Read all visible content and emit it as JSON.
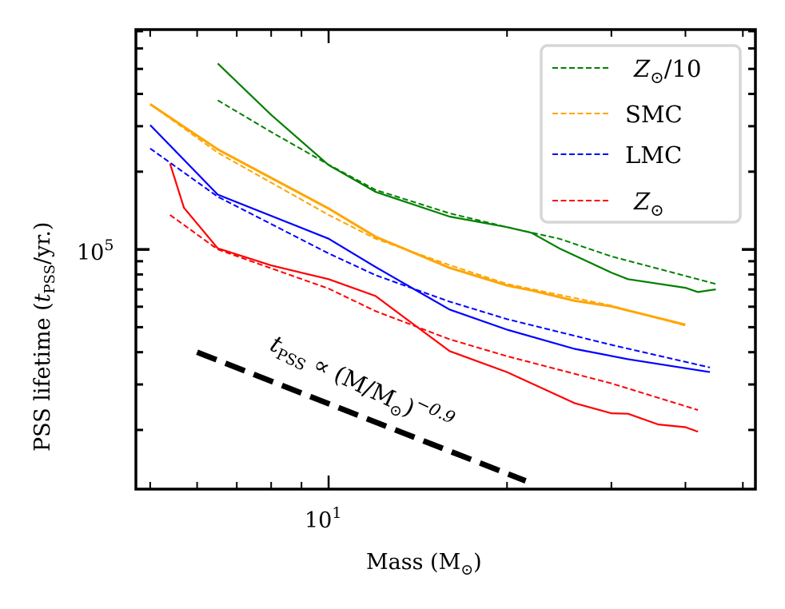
{
  "chart_data": {
    "type": "line",
    "title": "",
    "xlabel": "Mass (M⊙)",
    "xlabel_parts": {
      "main": "Mass (M",
      "sub": "⊙",
      "close": ")"
    },
    "ylabel": "PSS lifetime (t_PSS/yr.)",
    "ylabel_parts": {
      "pre": "PSS lifetime (",
      "var": "t",
      "sub": "PSS",
      "post": "/yr.)"
    },
    "xscale": "log",
    "yscale": "log",
    "xlim": [
      4.73,
      52.5
    ],
    "ylim": [
      11800,
      710000
    ],
    "x_major_ticks": [
      {
        "value": 10,
        "base": "10",
        "exp": "1"
      }
    ],
    "x_minor_ticks": [
      5,
      6,
      7,
      8,
      9,
      20,
      30,
      40,
      50
    ],
    "y_major_ticks": [
      {
        "value": 100000,
        "base": "10",
        "exp": "5"
      }
    ],
    "y_minor_ticks": [
      20000,
      30000,
      40000,
      50000,
      60000,
      70000,
      80000,
      90000,
      200000,
      300000,
      400000,
      500000,
      600000,
      700000
    ],
    "grid": false,
    "legend": {
      "placement": "top-right",
      "entries": [
        {
          "label_main": "Z",
          "label_sub": "⊙",
          "label_tail": "/10",
          "color": "#008000"
        },
        {
          "label_main": "SMC",
          "label_sub": "",
          "label_tail": "",
          "color": "#ffa500"
        },
        {
          "label_main": "LMC",
          "label_sub": "",
          "label_tail": "",
          "color": "#0000ff"
        },
        {
          "label_main": "Z",
          "label_sub": "⊙",
          "label_tail": "",
          "color": "#ff0000"
        }
      ]
    },
    "series": [
      {
        "name": "Z⊙/10 (solid)",
        "color": "#008000",
        "style": "solid",
        "x": [
          6.5,
          8.0,
          10.0,
          12.0,
          16.0,
          20.0,
          22.0,
          24.5,
          30.0,
          32.0,
          40.0,
          42.0,
          45.0
        ],
        "y": [
          525000,
          332000,
          212000,
          167000,
          134000,
          122000,
          116000,
          101000,
          81300,
          76700,
          71000,
          68400,
          70000
        ]
      },
      {
        "name": "Z⊙/10 (dashed)",
        "color": "#008000",
        "style": "dashed",
        "x": [
          6.5,
          8.0,
          10.0,
          12.0,
          16.0,
          20.0,
          24.5,
          30.0,
          40.0,
          45.0
        ],
        "y": [
          378000,
          285000,
          213000,
          170000,
          138000,
          122000,
          110000,
          94000,
          79000,
          73500
        ]
      },
      {
        "name": "SMC (solid)",
        "color": "#ffa500",
        "style": "solid",
        "x": [
          5.0,
          6.5,
          10.0,
          12.0,
          16.0,
          20.0,
          22.0,
          26.0,
          30.0,
          40.0
        ],
        "y": [
          365000,
          244000,
          144000,
          112000,
          84900,
          72500,
          69400,
          63300,
          60200,
          51100
        ]
      },
      {
        "name": "SMC (dashed)",
        "color": "#ffa500",
        "style": "dashed",
        "x": [
          5.0,
          6.5,
          10.0,
          12.0,
          16.0,
          20.0,
          30.0,
          40.0
        ],
        "y": [
          365000,
          237000,
          136000,
          110000,
          87000,
          73500,
          60600,
          50700
        ]
      },
      {
        "name": "LMC (solid)",
        "color": "#0000ff",
        "style": "solid",
        "x": [
          5.0,
          6.5,
          10.0,
          12.0,
          16.0,
          20.0,
          26.0,
          32.0,
          44.0
        ],
        "y": [
          303000,
          163000,
          110000,
          85500,
          58500,
          48900,
          41200,
          37600,
          33500
        ]
      },
      {
        "name": "LMC (dashed)",
        "color": "#0000ff",
        "style": "dashed",
        "x": [
          5.0,
          6.5,
          10.0,
          12.0,
          16.0,
          20.0,
          30.0,
          44.0
        ],
        "y": [
          246000,
          160000,
          96500,
          79500,
          62800,
          53700,
          42700,
          34900
        ]
      },
      {
        "name": "Z⊙ (solid)",
        "color": "#ff0000",
        "style": "solid",
        "x": [
          5.4,
          5.7,
          6.5,
          8.0,
          10.0,
          12.0,
          16.0,
          20.0,
          26.0,
          30.0,
          32.0,
          36.0,
          40.0,
          42.0
        ],
        "y": [
          215000,
          145000,
          101000,
          86700,
          76700,
          66000,
          40400,
          33500,
          25400,
          23200,
          23100,
          21000,
          20500,
          19700
        ]
      },
      {
        "name": "Z⊙ (dashed)",
        "color": "#ff0000",
        "style": "dashed",
        "x": [
          5.4,
          6.5,
          10.0,
          12.0,
          16.0,
          20.0,
          30.0,
          42.0
        ],
        "y": [
          136000,
          100000,
          70500,
          57700,
          44900,
          38600,
          30300,
          23900
        ]
      }
    ],
    "reference_line": {
      "color": "#000000",
      "style": "dashed",
      "x": [
        6.0,
        21.5
      ],
      "y": [
        40000,
        12700
      ],
      "slope": -0.9
    },
    "annotation": {
      "var": "t",
      "sub": "PSS",
      "prop": " ∝ (M/M",
      "sub2": "⊙",
      "close": ")",
      "exp": "−0.9",
      "text": "t_PSS ∝ (M/M⊙)^−0.9"
    }
  }
}
